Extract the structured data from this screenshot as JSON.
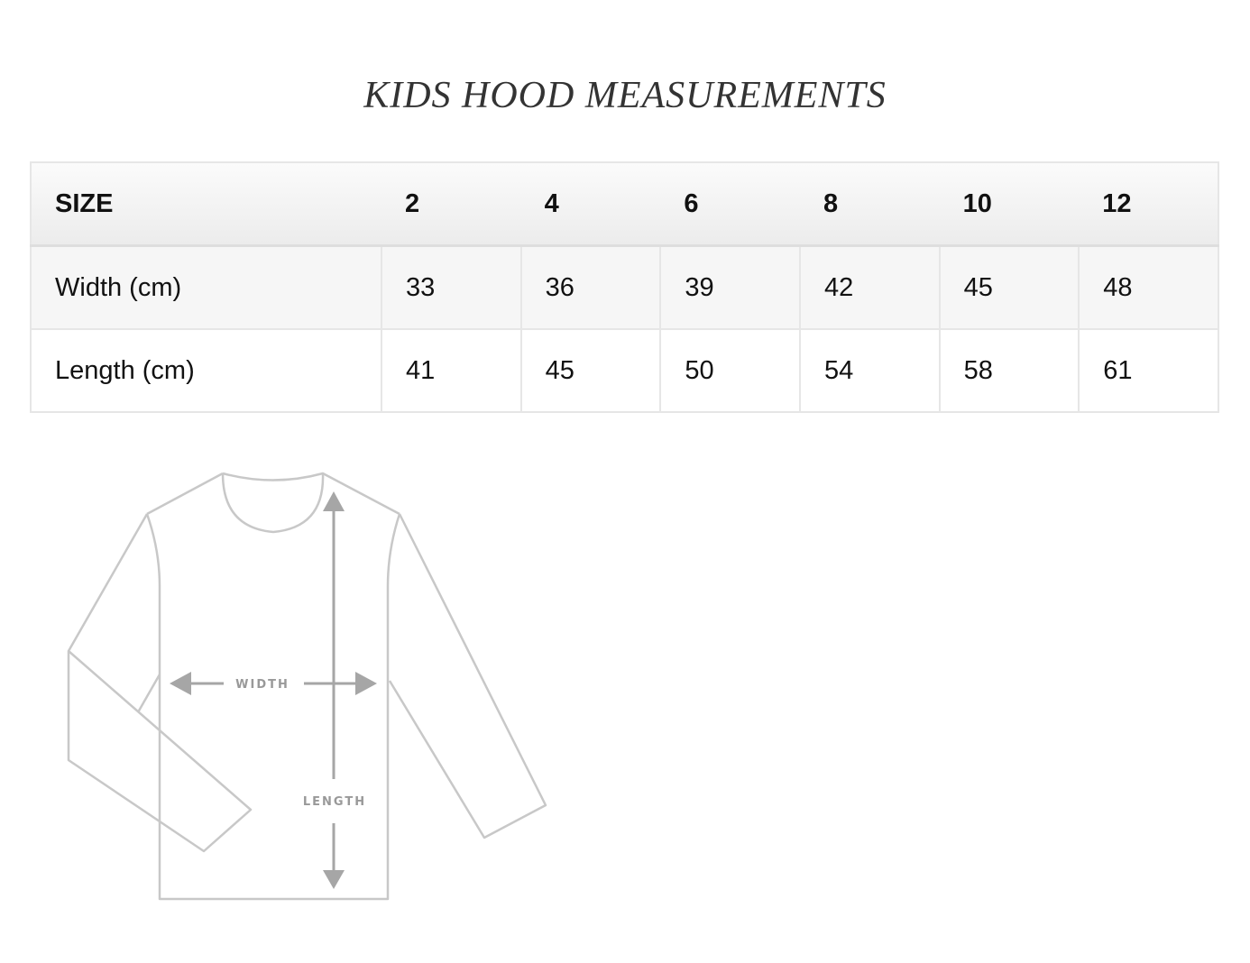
{
  "title": "KIDS HOOD MEASUREMENTS",
  "table": {
    "header": [
      "SIZE",
      "2",
      "4",
      "6",
      "8",
      "10",
      "12"
    ],
    "rows": [
      [
        "Width (cm)",
        "33",
        "36",
        "39",
        "42",
        "45",
        "48"
      ],
      [
        "Length (cm)",
        "41",
        "45",
        "50",
        "54",
        "58",
        "61"
      ]
    ]
  },
  "diagram": {
    "width_label": "WIDTH",
    "length_label": "LENGTH",
    "line_color": "#c8c8c8",
    "arrow_color": "#a6a6a6"
  }
}
